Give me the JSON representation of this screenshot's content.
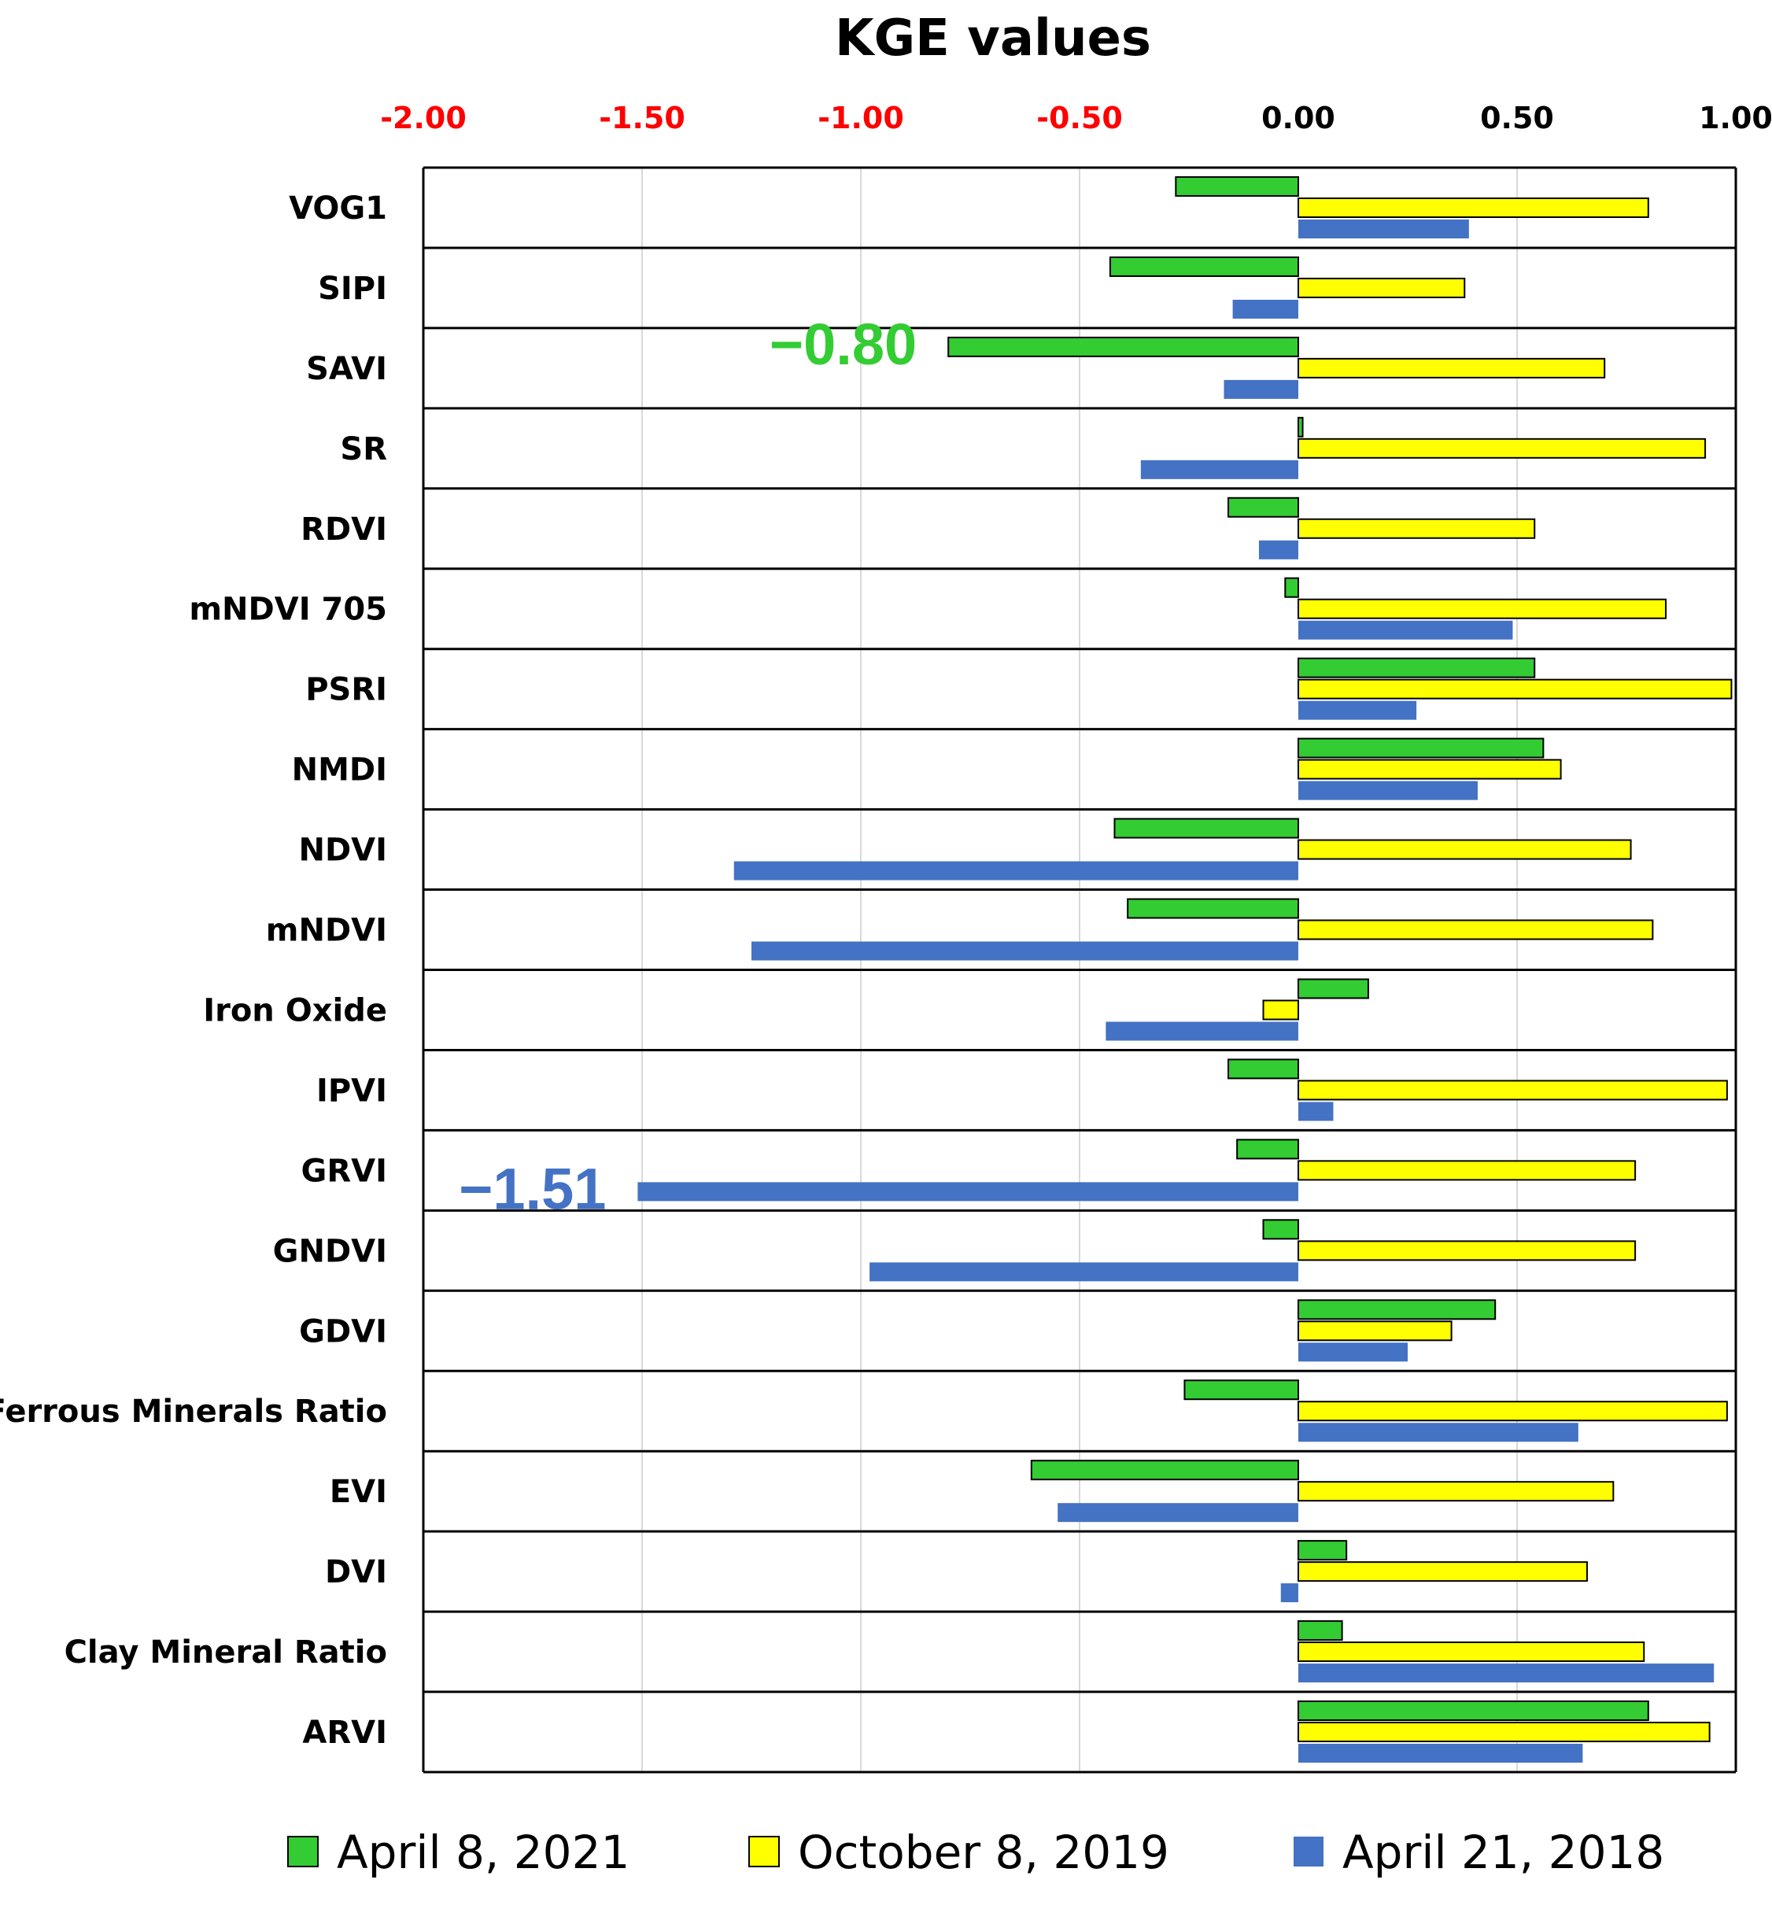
{
  "chart_data": {
    "type": "bar",
    "orientation": "horizontal",
    "title": "KGE values",
    "xlim": [
      -2.0,
      1.0
    ],
    "x_ticks": [
      -2.0,
      -1.5,
      -1.0,
      -0.5,
      0.0,
      0.5,
      1.0
    ],
    "x_tick_labels": [
      "-2.00",
      "-1.50",
      "-1.00",
      "-0.50",
      "0.00",
      "0.50",
      "1.00"
    ],
    "negative_tick_color": "#ff0000",
    "positive_tick_color": "#000000",
    "grid": true,
    "axis_position": "top",
    "legend_position": "bottom",
    "categories": [
      "VOG1",
      "SIPI",
      "SAVI",
      "SR",
      "RDVI",
      "mNDVI 705",
      "PSRI",
      "NMDI",
      "NDVI",
      "mNDVI",
      "Iron Oxide",
      "IPVI",
      "GRVI",
      "GNDVI",
      "GDVI",
      "Ferrous Minerals Ratio",
      "EVI",
      "DVI",
      "Clay Mineral Ratio",
      "ARVI"
    ],
    "series": [
      {
        "name": "April 8, 2021",
        "color": "#33cc33",
        "values": [
          -0.28,
          -0.43,
          -0.8,
          0.01,
          -0.16,
          -0.03,
          0.54,
          0.56,
          -0.42,
          -0.39,
          0.16,
          -0.16,
          -0.14,
          -0.08,
          0.45,
          -0.26,
          -0.61,
          0.11,
          0.1,
          0.8
        ]
      },
      {
        "name": "October 8, 2019",
        "color": "#ffff00",
        "values": [
          0.8,
          0.38,
          0.7,
          0.93,
          0.54,
          0.84,
          0.99,
          0.6,
          0.76,
          0.81,
          -0.08,
          0.98,
          0.77,
          0.77,
          0.35,
          0.98,
          0.72,
          0.66,
          0.79,
          0.94
        ]
      },
      {
        "name": "April 21, 2018",
        "color": "#4472c4",
        "values": [
          0.39,
          -0.15,
          -0.17,
          -0.36,
          -0.09,
          0.49,
          0.27,
          0.41,
          -1.29,
          -1.25,
          -0.44,
          0.08,
          -1.51,
          -0.98,
          0.25,
          0.64,
          -0.55,
          -0.04,
          0.95,
          0.65
        ]
      }
    ],
    "annotations": [
      {
        "text": "−0.80",
        "category": "SAVI",
        "series": "April 8, 2021",
        "color": "#33cc33"
      },
      {
        "text": "−1.51",
        "category": "GRVI",
        "series": "April 21, 2018",
        "color": "#4472c4"
      }
    ]
  }
}
